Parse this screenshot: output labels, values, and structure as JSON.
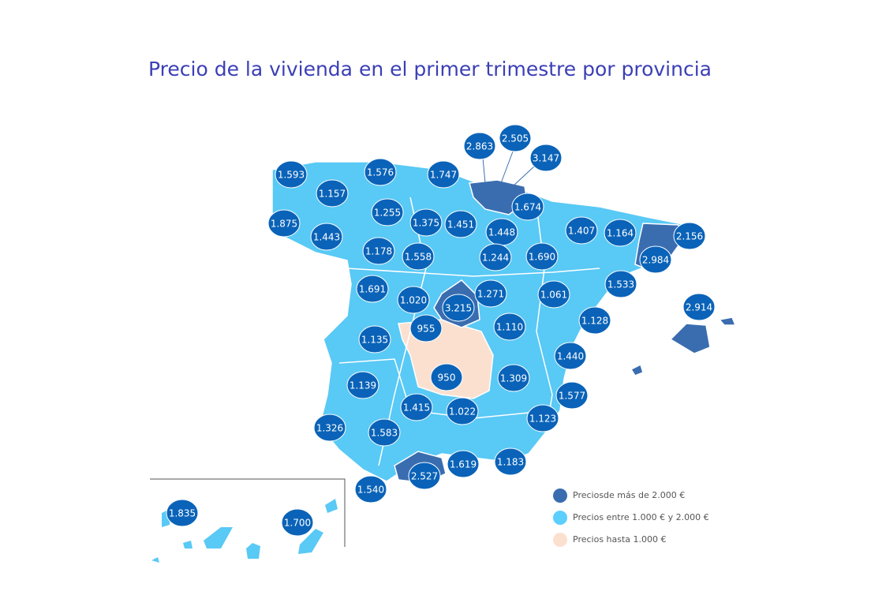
{
  "title": "Precio de la vivienda en el primer trimestre por provincia",
  "labels": [
    "1.593",
    "1.157",
    "1.576",
    "1.747",
    "2.863",
    "2.505",
    "3.147",
    "1.875",
    "1.443",
    "1.255",
    "1.375",
    "1.451",
    "1.674",
    "1.448",
    "1.407",
    "1.164",
    "2.156",
    "2.984",
    "1.178",
    "1.558",
    "1.244",
    "1.690",
    "1.691",
    "1.020",
    "3.215",
    "1.271",
    "1.061",
    "1.533",
    "2.914",
    "955",
    "1.110",
    "1.128",
    "1.135",
    "1.440",
    "950",
    "1.309",
    "1.139",
    "1.577",
    "1.415",
    "1.022",
    "1.123",
    "1.326",
    "1.583",
    "1.619",
    "1.183",
    "2.527",
    "1.540",
    "1.835",
    "1.700"
  ],
  "legend": [
    {
      "text": "Preciosde más de 2.000 €",
      "color": "#3a6db0"
    },
    {
      "text": "Precios entre 1.000 € y 2.000 €",
      "color": "#5ccfff"
    },
    {
      "text": "Precios hasta 1.000 €",
      "color": "#fbe0d0"
    }
  ]
}
